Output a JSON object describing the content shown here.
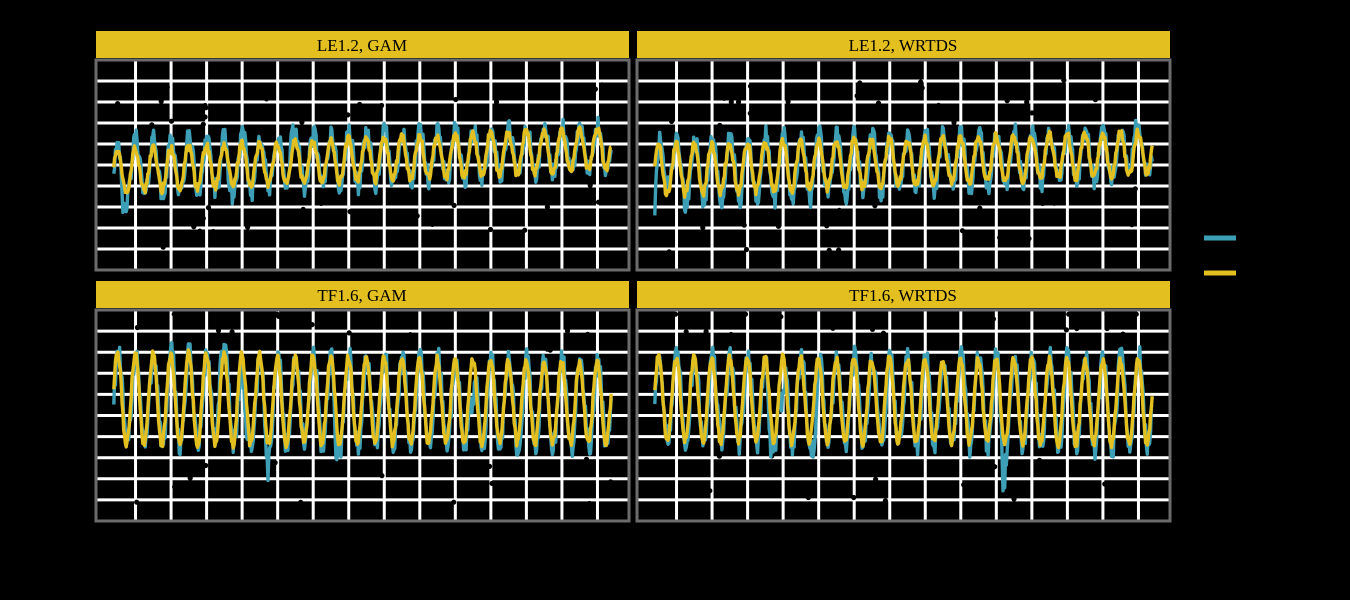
{
  "chart_data": {
    "type": "line",
    "layout": "facet-grid 2x2",
    "background": "#000000",
    "panel_background": "#000000",
    "panel_border": "#6b6b6b",
    "gridlines": {
      "shown": true,
      "color": "#ffffff"
    },
    "strip_color": "#e3bf1f",
    "facet_titles": [
      "LE1.2, GAM",
      "LE1.2, WRTDS",
      "TF1.6, GAM",
      "TF1.6, WRTDS"
    ],
    "legend": {
      "position": "right",
      "entries": [
        {
          "name": "",
          "color": "#3d9fb5"
        },
        {
          "name": "",
          "color": "#e3bf1f"
        }
      ]
    },
    "x_range": [
      0,
      30
    ],
    "y_range": [
      0,
      1
    ],
    "series_colors": [
      "#3d9fb5",
      "#e3bf1f"
    ],
    "panels": [
      {
        "title": "LE1.2, GAM",
        "observed_points": true,
        "series": [
          {
            "color": "#3d9fb5",
            "base_start": 0.48,
            "base_end": 0.58,
            "amp_start": 0.15,
            "amp_end": 0.1,
            "noise": 0.05,
            "spikes": [
              [
                1.5,
                -0.2
              ],
              [
                7.5,
                -0.1
              ],
              [
                11.0,
                0.1
              ]
            ]
          },
          {
            "color": "#e3bf1f",
            "base_start": 0.47,
            "base_end": 0.58,
            "amp_start": 0.1,
            "amp_end": 0.1,
            "noise": 0.02,
            "spikes": []
          }
        ]
      },
      {
        "title": "LE1.2, WRTDS",
        "observed_points": true,
        "series": [
          {
            "color": "#3d9fb5",
            "base_start": 0.46,
            "base_end": 0.56,
            "amp_start": 0.17,
            "amp_end": 0.1,
            "noise": 0.05,
            "spikes": [
              [
                1.0,
                -0.18
              ],
              [
                1.8,
                0.12
              ],
              [
                28.0,
                0.1
              ]
            ]
          },
          {
            "color": "#e3bf1f",
            "base_start": 0.47,
            "base_end": 0.56,
            "amp_start": 0.12,
            "amp_end": 0.1,
            "noise": 0.02,
            "spikes": []
          }
        ]
      },
      {
        "title": "TF1.6, GAM",
        "observed_points": true,
        "series": [
          {
            "color": "#3d9fb5",
            "base_start": 0.58,
            "base_end": 0.55,
            "amp_start": 0.22,
            "amp_end": 0.2,
            "noise": 0.06,
            "spikes": [
              [
                7.0,
                0.15
              ],
              [
                8.4,
                -0.22
              ],
              [
                9.6,
                -0.18
              ],
              [
                13.5,
                -0.2
              ],
              [
                21.2,
                -0.22
              ]
            ]
          },
          {
            "color": "#e3bf1f",
            "base_start": 0.58,
            "base_end": 0.56,
            "amp_start": 0.22,
            "amp_end": 0.19,
            "noise": 0.02,
            "spikes": []
          }
        ]
      },
      {
        "title": "TF1.6, WRTDS",
        "observed_points": true,
        "series": [
          {
            "color": "#3d9fb5",
            "base_start": 0.58,
            "base_end": 0.56,
            "amp_start": 0.2,
            "amp_end": 0.22,
            "noise": 0.06,
            "spikes": [
              [
                7.5,
                -0.22
              ],
              [
                8.2,
                -0.2
              ],
              [
                10.0,
                -0.22
              ],
              [
                20.6,
                -0.24
              ]
            ]
          },
          {
            "color": "#e3bf1f",
            "base_start": 0.58,
            "base_end": 0.56,
            "amp_start": 0.2,
            "amp_end": 0.2,
            "noise": 0.02,
            "spikes": []
          }
        ]
      }
    ]
  }
}
